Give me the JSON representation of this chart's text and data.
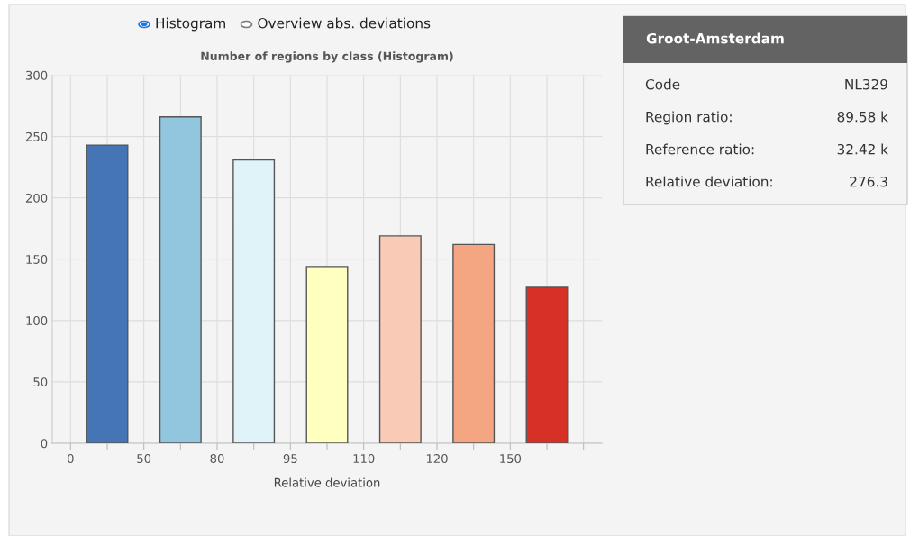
{
  "chart_data": [
    {
      "type": "bar",
      "title": "Number of regions by class (Histogram)",
      "xlabel": "Relative deviation",
      "annotations": [
        "Histogram",
        "Overview abs. deviations"
      ],
      "categories": [
        "0",
        "50",
        "80",
        "95",
        "110",
        "120",
        "150"
      ],
      "values": [
        243,
        266,
        231,
        144,
        169,
        162,
        127
      ],
      "colors": [
        "#4575b4",
        "#92c5de",
        "#e0f3f8",
        "#ffffbf",
        "#f9cbb7",
        "#f4a582",
        "#d73027"
      ],
      "ylim": [
        0,
        300
      ],
      "yticks": [
        0,
        50,
        100,
        150,
        200,
        250,
        300
      ],
      "grid": true,
      "legend": false
    },
    {
      "type": "other",
      "title": "Groot-Amsterdam",
      "annotations": [
        "Code",
        "NL329",
        "Region ratio:",
        "89.58 k",
        "Reference ratio:",
        "32.42 k",
        "Relative deviation:",
        "276.3"
      ]
    }
  ]
}
